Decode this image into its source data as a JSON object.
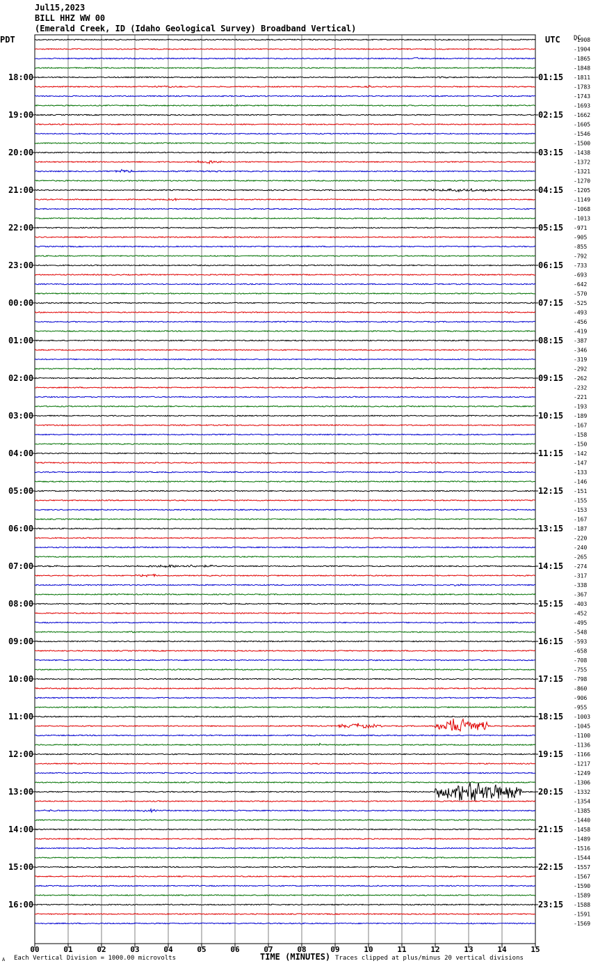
{
  "header": {
    "date": "Jul15,2023",
    "station": "BILL HHZ WW 00",
    "location": "(Emerald Creek, ID (Idaho Geological Survey) Broadband Vertical)"
  },
  "left_zone": "PDT",
  "right_zone": "UTC",
  "right_unit": "DC",
  "footer": {
    "scale_note": "Each Vertical Division = 1000.00 microvolts",
    "clip_note": "Traces clipped at plus/minus 20 vertical divisions",
    "mark": "A"
  },
  "colors": {
    "black": "#000000",
    "red": "#e00000",
    "blue": "#0000d0",
    "green": "#007000",
    "grid": "#808080"
  },
  "chart_data": {
    "type": "line",
    "title": "BILL HHZ WW 00",
    "xlabel": "TIME (MINUTES)",
    "xlim": [
      0,
      15
    ],
    "x_ticks": [
      "00",
      "01",
      "02",
      "03",
      "04",
      "05",
      "06",
      "07",
      "08",
      "09",
      "10",
      "11",
      "12",
      "13",
      "14",
      "15"
    ],
    "left_hour_labels": [
      "18:00",
      "19:00",
      "20:00",
      "21:00",
      "22:00",
      "23:00",
      "00:00",
      "01:00",
      "02:00",
      "03:00",
      "04:00",
      "05:00",
      "06:00",
      "07:00",
      "08:00",
      "09:00",
      "10:00",
      "11:00",
      "12:00",
      "13:00",
      "14:00",
      "15:00",
      "16:00"
    ],
    "right_hour_labels": [
      "01:15",
      "02:15",
      "03:15",
      "04:15",
      "05:15",
      "06:15",
      "07:15",
      "08:15",
      "09:15",
      "10:15",
      "11:15",
      "12:15",
      "13:15",
      "14:15",
      "15:15",
      "16:15",
      "17:15",
      "18:15",
      "19:15",
      "20:15",
      "21:15",
      "22:15",
      "23:15"
    ],
    "trace_colors_cycle": [
      "black",
      "red",
      "blue",
      "green"
    ],
    "trace_dc_offsets": [
      -1908,
      -1904,
      -1865,
      -1848,
      -1811,
      -1783,
      -1743,
      -1693,
      -1662,
      -1605,
      -1546,
      -1500,
      -1438,
      -1372,
      -1321,
      -1270,
      -1205,
      -1149,
      -1068,
      -1013,
      -971,
      -905,
      -855,
      -792,
      -733,
      -693,
      -642,
      -570,
      -525,
      -493,
      -456,
      -419,
      -387,
      -346,
      -319,
      -292,
      -262,
      -232,
      -221,
      -193,
      -189,
      -167,
      -158,
      -150,
      -142,
      -147,
      -133,
      -146,
      -151,
      -155,
      -153,
      -167,
      -187,
      -220,
      -240,
      -265,
      -274,
      -317,
      -338,
      -367,
      -403,
      -452,
      -495,
      -548,
      -593,
      -658,
      -708,
      -755,
      -798,
      -860,
      -906,
      -955,
      -1003,
      -1045,
      -1100,
      -1136,
      -1166,
      -1217,
      -1249,
      -1306,
      -1332,
      -1354,
      -1385,
      -1440,
      -1458,
      -1489,
      -1516,
      -1544,
      -1557,
      -1567,
      -1590,
      -1589,
      -1588,
      -1591,
      -1569
    ],
    "events": [
      {
        "trace": 2,
        "start_min": 11.2,
        "end_min": 11.6,
        "amplitude_div": 0.6
      },
      {
        "trace": 4,
        "start_min": 12.0,
        "end_min": 12.5,
        "amplitude_div": 0.4
      },
      {
        "trace": 5,
        "start_min": 3.0,
        "end_min": 4.5,
        "amplitude_div": 0.4
      },
      {
        "trace": 5,
        "start_min": 9.8,
        "end_min": 10.2,
        "amplitude_div": 0.5
      },
      {
        "trace": 7,
        "start_min": 5.6,
        "end_min": 6.3,
        "amplitude_div": 0.4
      },
      {
        "trace": 13,
        "start_min": 4.8,
        "end_min": 5.6,
        "amplitude_div": 0.9
      },
      {
        "trace": 14,
        "start_min": 2.4,
        "end_min": 2.9,
        "amplitude_div": 1.0
      },
      {
        "trace": 14,
        "start_min": 3.6,
        "end_min": 6.2,
        "amplitude_div": 0.4
      },
      {
        "trace": 16,
        "start_min": 11.0,
        "end_min": 14.9,
        "amplitude_div": 0.6
      },
      {
        "trace": 17,
        "start_min": 4.0,
        "end_min": 4.4,
        "amplitude_div": 0.6
      },
      {
        "trace": 52,
        "start_min": 14.2,
        "end_min": 14.9,
        "amplitude_div": 0.3
      },
      {
        "trace": 56,
        "start_min": 0.1,
        "end_min": 1.2,
        "amplitude_div": 0.4
      },
      {
        "trace": 56,
        "start_min": 3.0,
        "end_min": 5.6,
        "amplitude_div": 0.7
      },
      {
        "trace": 57,
        "start_min": 3.0,
        "end_min": 3.7,
        "amplitude_div": 0.7
      },
      {
        "trace": 58,
        "start_min": 12.5,
        "end_min": 12.9,
        "amplitude_div": 0.8
      },
      {
        "trace": 63,
        "start_min": 2.8,
        "end_min": 3.0,
        "amplitude_div": 0.8
      },
      {
        "trace": 69,
        "start_min": 8.5,
        "end_min": 10.5,
        "amplitude_div": 0.3
      },
      {
        "trace": 73,
        "start_min": 9.0,
        "end_min": 10.4,
        "amplitude_div": 1.0
      },
      {
        "trace": 73,
        "start_min": 12.0,
        "end_min": 13.6,
        "amplitude_div": 3.5
      },
      {
        "trace": 74,
        "start_min": 8.0,
        "end_min": 8.6,
        "amplitude_div": 0.3
      },
      {
        "trace": 75,
        "start_min": 8.5,
        "end_min": 8.6,
        "amplitude_div": 0.8
      },
      {
        "trace": 80,
        "start_min": 12.0,
        "end_min": 14.6,
        "amplitude_div": 4.5
      },
      {
        "trace": 82,
        "start_min": 0.1,
        "end_min": 1.0,
        "amplitude_div": 0.4
      },
      {
        "trace": 82,
        "start_min": 3.2,
        "end_min": 3.7,
        "amplitude_div": 0.6
      },
      {
        "trace": 82,
        "start_min": 4.5,
        "end_min": 5.0,
        "amplitude_div": 0.4
      }
    ]
  }
}
